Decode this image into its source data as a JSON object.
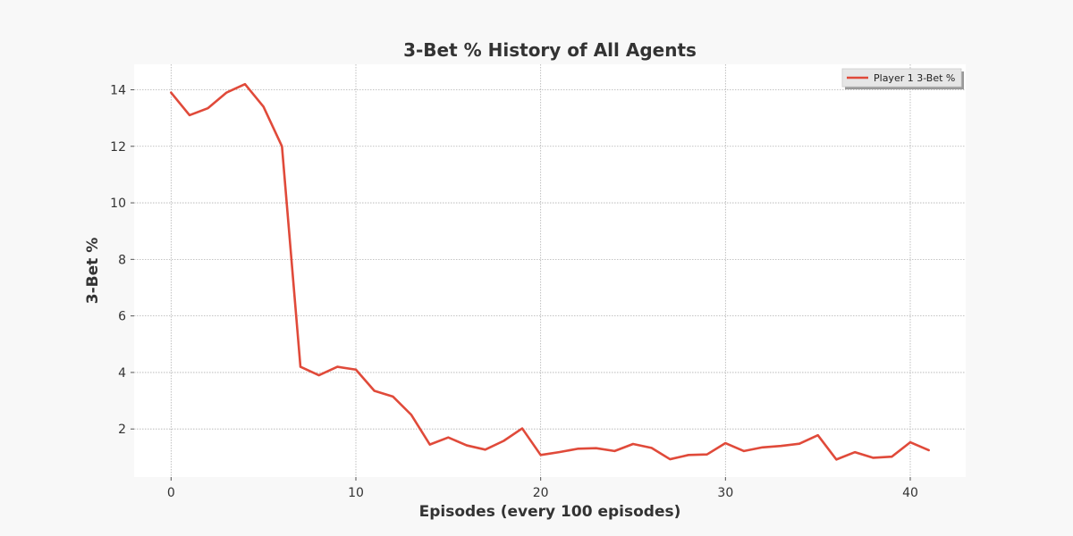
{
  "chart_data": {
    "type": "line",
    "title": "3-Bet % History of All Agents",
    "xlabel": "Episodes (every 100 episodes)",
    "ylabel": "3-Bet %",
    "xlim": [
      -2,
      43
    ],
    "ylim": [
      0.3,
      14.9
    ],
    "xticks": [
      0,
      10,
      20,
      30,
      40
    ],
    "yticks": [
      2,
      4,
      6,
      8,
      10,
      12,
      14
    ],
    "grid": true,
    "legend_position": "top-right",
    "series": [
      {
        "name": "Player 1 3-Bet %",
        "color": "#e04a3a",
        "x": [
          0,
          1,
          2,
          3,
          4,
          5,
          6,
          7,
          8,
          9,
          10,
          11,
          12,
          13,
          14,
          15,
          16,
          17,
          18,
          19,
          20,
          21,
          22,
          23,
          24,
          25,
          26,
          27,
          28,
          29,
          30,
          31,
          32,
          33,
          34,
          35,
          36,
          37,
          38,
          39,
          40,
          41
        ],
        "values": [
          13.9,
          13.1,
          13.35,
          13.9,
          14.2,
          13.4,
          12.0,
          4.2,
          3.9,
          4.2,
          4.1,
          3.35,
          3.15,
          2.5,
          1.45,
          1.7,
          1.42,
          1.27,
          1.58,
          2.02,
          1.08,
          1.18,
          1.3,
          1.32,
          1.22,
          1.47,
          1.33,
          0.93,
          1.08,
          1.1,
          1.5,
          1.22,
          1.35,
          1.4,
          1.48,
          1.78,
          0.92,
          1.18,
          0.98,
          1.02,
          1.53,
          1.25
        ]
      }
    ]
  }
}
